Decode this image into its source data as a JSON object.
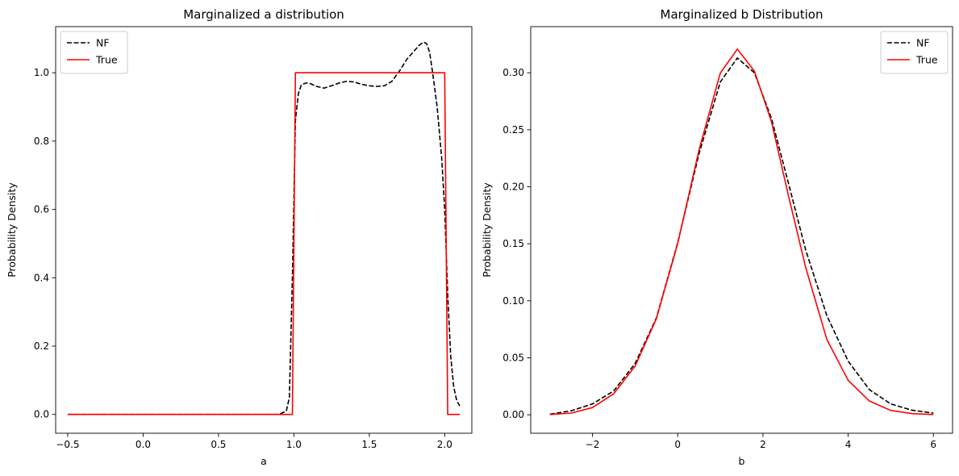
{
  "chart_data": [
    {
      "type": "line",
      "title": "Marginalized a distribution",
      "xlabel": "a",
      "ylabel": "Probability Density",
      "xlim": [
        -0.58,
        2.18
      ],
      "ylim": [
        -0.055,
        1.135
      ],
      "xticks": [
        -0.5,
        0.0,
        0.5,
        1.0,
        1.5,
        2.0
      ],
      "xtick_labels": [
        "−0.5",
        "0.0",
        "0.5",
        "1.0",
        "1.5",
        "2.0"
      ],
      "yticks": [
        0.0,
        0.2,
        0.4,
        0.6,
        0.8,
        1.0
      ],
      "ytick_labels": [
        "0.0",
        "0.2",
        "0.4",
        "0.6",
        "0.8",
        "1.0"
      ],
      "grid": false,
      "legend_position": "top-left",
      "series": [
        {
          "name": "NF",
          "color": "#000000",
          "style": "dashed",
          "x": [
            -0.5,
            0.0,
            0.5,
            0.9,
            0.95,
            0.97,
            0.99,
            1.01,
            1.03,
            1.05,
            1.08,
            1.1,
            1.15,
            1.2,
            1.25,
            1.3,
            1.35,
            1.4,
            1.45,
            1.5,
            1.55,
            1.6,
            1.65,
            1.7,
            1.75,
            1.8,
            1.83,
            1.86,
            1.88,
            1.9,
            1.92,
            1.95,
            1.98,
            2.0,
            2.02,
            2.04,
            2.06,
            2.08,
            2.1
          ],
          "y": [
            0.0,
            0.0,
            0.0,
            0.0,
            0.01,
            0.05,
            0.4,
            0.86,
            0.94,
            0.965,
            0.97,
            0.97,
            0.96,
            0.955,
            0.962,
            0.97,
            0.975,
            0.973,
            0.966,
            0.962,
            0.96,
            0.962,
            0.975,
            1.005,
            1.04,
            1.065,
            1.08,
            1.09,
            1.085,
            1.06,
            1.0,
            0.9,
            0.75,
            0.6,
            0.35,
            0.17,
            0.08,
            0.04,
            0.025
          ]
        },
        {
          "name": "True",
          "color": "#ff0000",
          "style": "solid",
          "x": [
            -0.5,
            0.99,
            1.01,
            2.0,
            2.02,
            2.1
          ],
          "y": [
            0.0,
            0.0,
            1.0,
            1.0,
            0.0,
            0.0
          ]
        }
      ]
    },
    {
      "type": "line",
      "title": "Marginalized b Distribution",
      "xlabel": "b",
      "ylabel": "Probability Density",
      "xlim": [
        -3.45,
        6.45
      ],
      "ylim": [
        -0.0162,
        0.3405
      ],
      "xticks": [
        -2,
        0,
        2,
        4,
        6
      ],
      "xtick_labels": [
        "−2",
        "0",
        "2",
        "4",
        "6"
      ],
      "yticks": [
        0.0,
        0.05,
        0.1,
        0.15,
        0.2,
        0.25,
        0.3
      ],
      "ytick_labels": [
        "0.00",
        "0.05",
        "0.10",
        "0.15",
        "0.20",
        "0.25",
        "0.30"
      ],
      "grid": false,
      "legend_position": "top-right",
      "series": [
        {
          "name": "NF",
          "color": "#000000",
          "style": "dashed",
          "x": [
            -3.0,
            -2.5,
            -2.0,
            -1.5,
            -1.0,
            -0.5,
            0.0,
            0.5,
            1.0,
            1.4,
            1.8,
            2.2,
            2.6,
            3.0,
            3.5,
            4.0,
            4.5,
            5.0,
            5.5,
            6.0
          ],
          "y": [
            0.0005,
            0.0035,
            0.0095,
            0.021,
            0.045,
            0.085,
            0.151,
            0.229,
            0.292,
            0.313,
            0.3,
            0.26,
            0.203,
            0.145,
            0.087,
            0.047,
            0.022,
            0.0095,
            0.004,
            0.0015
          ]
        },
        {
          "name": "True",
          "color": "#ff0000",
          "style": "solid",
          "x": [
            -3.0,
            -2.5,
            -2.0,
            -1.5,
            -1.0,
            -0.5,
            0.0,
            0.5,
            1.0,
            1.4,
            1.8,
            2.2,
            2.6,
            3.0,
            3.5,
            4.0,
            4.5,
            5.0,
            5.5,
            6.0
          ],
          "y": [
            0.0002,
            0.0015,
            0.0063,
            0.0185,
            0.0427,
            0.0843,
            0.1503,
            0.2323,
            0.2998,
            0.3208,
            0.3015,
            0.2571,
            0.1921,
            0.1297,
            0.0661,
            0.0302,
            0.012,
            0.0038,
            0.001,
            0.0002
          ]
        }
      ]
    }
  ]
}
